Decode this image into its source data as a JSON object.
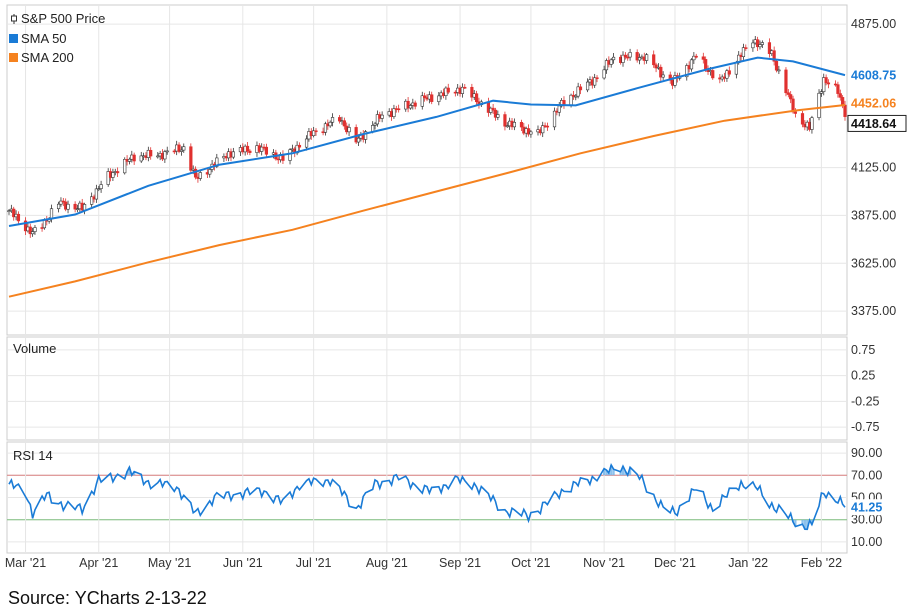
{
  "caption": "Source: YCharts 2-13-22",
  "colors": {
    "up": "#ffffff",
    "up_stroke": "#333333",
    "down": "#e0302f",
    "sma50": "#1a7bd6",
    "sma200": "#f5821f",
    "rsi": "#1a7bd6",
    "rsi_fill": "#6fb2e8",
    "grid": "#e6e6e6",
    "panel_border": "#cccccc",
    "rsi_upper_line": "#d98080",
    "rsi_lower_line": "#7fbf7f"
  },
  "chart_data": [
    {
      "type": "candlestick",
      "panel": "price",
      "legend": [
        {
          "label": "S&P 500 Price",
          "icon": "candlestick-icon"
        },
        {
          "label": "SMA 50",
          "icon": "square-icon",
          "color": "#1a7bd6"
        },
        {
          "label": "SMA 200",
          "icon": "square-icon",
          "color": "#f5821f"
        }
      ],
      "ylim": [
        3250,
        4975
      ],
      "yticks": [
        "4875.00",
        "4125.00",
        "3875.00",
        "3625.00",
        "3375.00"
      ],
      "ytick_values": [
        4875,
        4125,
        3875,
        3625,
        3375
      ],
      "last_values": {
        "sma50": "4608.75",
        "sma200": "4452.06",
        "price": "4418.64"
      },
      "x_dates": [
        "2021-02-22",
        "2022-02-11"
      ],
      "price_path": [
        [
          "2021-02-22",
          3900
        ],
        [
          "2021-03-04",
          3780
        ],
        [
          "2021-03-08",
          3825
        ],
        [
          "2021-03-15",
          3940
        ],
        [
          "2021-03-25",
          3910
        ],
        [
          "2021-04-05",
          4080
        ],
        [
          "2021-04-16",
          4185
        ],
        [
          "2021-04-26",
          4190
        ],
        [
          "2021-05-07",
          4230
        ],
        [
          "2021-05-12",
          4065
        ],
        [
          "2021-05-26",
          4200
        ],
        [
          "2021-06-07",
          4230
        ],
        [
          "2021-06-18",
          4170
        ],
        [
          "2021-06-30",
          4300
        ],
        [
          "2021-07-12",
          4385
        ],
        [
          "2021-07-19",
          4260
        ],
        [
          "2021-07-30",
          4400
        ],
        [
          "2021-08-16",
          4480
        ],
        [
          "2021-09-02",
          4540
        ],
        [
          "2021-09-20",
          4360
        ],
        [
          "2021-10-04",
          4300
        ],
        [
          "2021-10-15",
          4470
        ],
        [
          "2021-10-29",
          4600
        ],
        [
          "2021-11-05",
          4700
        ],
        [
          "2021-11-18",
          4705
        ],
        [
          "2021-11-30",
          4565
        ],
        [
          "2021-12-10",
          4710
        ],
        [
          "2021-12-20",
          4570
        ],
        [
          "2022-01-03",
          4795
        ],
        [
          "2022-01-11",
          4720
        ],
        [
          "2022-01-21",
          4400
        ],
        [
          "2022-01-27",
          4330
        ],
        [
          "2022-02-02",
          4590
        ],
        [
          "2022-02-08",
          4520
        ],
        [
          "2022-02-11",
          4418
        ]
      ],
      "sma50_path": [
        [
          "2021-02-22",
          3820
        ],
        [
          "2021-03-22",
          3880
        ],
        [
          "2021-04-22",
          4030
        ],
        [
          "2021-05-22",
          4140
        ],
        [
          "2021-06-22",
          4200
        ],
        [
          "2021-07-22",
          4300
        ],
        [
          "2021-08-22",
          4390
        ],
        [
          "2021-09-15",
          4475
        ],
        [
          "2021-10-01",
          4455
        ],
        [
          "2021-10-20",
          4450
        ],
        [
          "2021-11-15",
          4540
        ],
        [
          "2021-12-15",
          4640
        ],
        [
          "2022-01-05",
          4700
        ],
        [
          "2022-01-20",
          4680
        ],
        [
          "2022-02-11",
          4608.75
        ]
      ],
      "sma200_path": [
        [
          "2021-02-22",
          3450
        ],
        [
          "2021-03-22",
          3530
        ],
        [
          "2021-04-22",
          3630
        ],
        [
          "2021-05-22",
          3720
        ],
        [
          "2021-06-22",
          3800
        ],
        [
          "2021-07-22",
          3900
        ],
        [
          "2021-08-22",
          4000
        ],
        [
          "2021-09-22",
          4100
        ],
        [
          "2021-10-22",
          4200
        ],
        [
          "2021-11-22",
          4290
        ],
        [
          "2021-12-22",
          4370
        ],
        [
          "2022-01-22",
          4425
        ],
        [
          "2022-02-11",
          4452.06
        ]
      ]
    },
    {
      "type": "bar",
      "panel": "volume",
      "title": "Volume",
      "ylim": [
        -1.0,
        1.0
      ],
      "yticks": [
        "0.75",
        "0.25",
        "-0.25",
        "-0.75"
      ],
      "ytick_values": [
        0.75,
        0.25,
        -0.25,
        -0.75
      ],
      "values": []
    },
    {
      "type": "line",
      "panel": "rsi",
      "title": "RSI 14",
      "ylim": [
        0,
        100
      ],
      "yticks": [
        "90.00",
        "70.00",
        "50.00",
        "30.00",
        "10.00"
      ],
      "ytick_values": [
        90,
        70,
        50,
        30,
        10
      ],
      "bands": [
        70,
        30
      ],
      "last_value": "41.25",
      "path": [
        [
          "2021-02-22",
          62
        ],
        [
          "2021-03-01",
          55
        ],
        [
          "2021-03-04",
          36
        ],
        [
          "2021-03-10",
          52
        ],
        [
          "2021-03-18",
          42
        ],
        [
          "2021-03-25",
          40
        ],
        [
          "2021-04-01",
          65
        ],
        [
          "2021-04-14",
          73
        ],
        [
          "2021-04-23",
          63
        ],
        [
          "2021-05-04",
          60
        ],
        [
          "2021-05-12",
          35
        ],
        [
          "2021-05-20",
          50
        ],
        [
          "2021-06-01",
          54
        ],
        [
          "2021-06-10",
          56
        ],
        [
          "2021-06-18",
          45
        ],
        [
          "2021-06-25",
          62
        ],
        [
          "2021-07-08",
          66
        ],
        [
          "2021-07-19",
          40
        ],
        [
          "2021-07-27",
          62
        ],
        [
          "2021-08-06",
          68
        ],
        [
          "2021-08-20",
          55
        ],
        [
          "2021-08-30",
          66
        ],
        [
          "2021-09-07",
          62
        ],
        [
          "2021-09-20",
          38
        ],
        [
          "2021-09-30",
          34
        ],
        [
          "2021-10-05",
          40
        ],
        [
          "2021-10-14",
          56
        ],
        [
          "2021-10-22",
          63
        ],
        [
          "2021-11-01",
          72
        ],
        [
          "2021-11-08",
          78
        ],
        [
          "2021-11-16",
          68
        ],
        [
          "2021-11-26",
          40
        ],
        [
          "2021-12-01",
          36
        ],
        [
          "2021-12-10",
          58
        ],
        [
          "2021-12-17",
          40
        ],
        [
          "2021-12-29",
          63
        ],
        [
          "2022-01-05",
          58
        ],
        [
          "2022-01-10",
          45
        ],
        [
          "2022-01-18",
          32
        ],
        [
          "2022-01-24",
          24
        ],
        [
          "2022-01-28",
          25
        ],
        [
          "2022-02-02",
          55
        ],
        [
          "2022-02-08",
          48
        ],
        [
          "2022-02-11",
          41.25
        ]
      ]
    }
  ],
  "x_axis": {
    "labels": [
      "Mar '21",
      "Apr '21",
      "May '21",
      "Jun '21",
      "Jul '21",
      "Aug '21",
      "Sep '21",
      "Oct '21",
      "Nov '21",
      "Dec '21",
      "Jan '22",
      "Feb '22"
    ],
    "dates": [
      "2021-03-01",
      "2021-04-01",
      "2021-05-01",
      "2021-06-01",
      "2021-07-01",
      "2021-08-01",
      "2021-09-01",
      "2021-10-01",
      "2021-11-01",
      "2021-12-01",
      "2022-01-01",
      "2022-02-01"
    ]
  }
}
